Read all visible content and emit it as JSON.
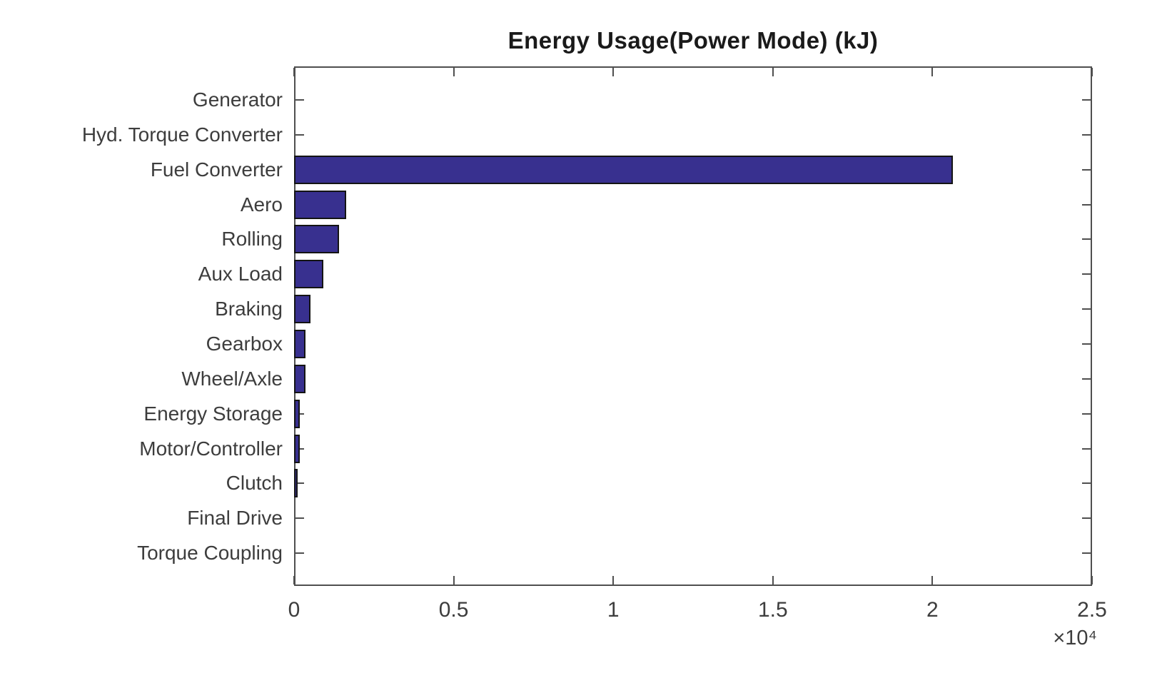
{
  "figure": {
    "background_color": "#ffffff"
  },
  "chart_data": {
    "type": "bar",
    "orientation": "horizontal",
    "title": "Energy Usage(Power Mode) (kJ)",
    "categories": [
      "Generator",
      "Hyd. Torque Converter",
      "Fuel Converter",
      "Aero",
      "Rolling",
      "Aux Load",
      "Braking",
      "Gearbox",
      "Wheel/Axle",
      "Energy Storage",
      "Motor/Controller",
      "Clutch",
      "Final Drive",
      "Torque Coupling"
    ],
    "values": [
      0,
      0,
      20650,
      1630,
      1410,
      910,
      510,
      350,
      350,
      180,
      180,
      100,
      0,
      0
    ],
    "unit": "kJ",
    "xlim": [
      0,
      25000
    ],
    "x_ticks": [
      0,
      5000,
      10000,
      15000,
      20000,
      25000
    ],
    "x_tick_labels": [
      "0",
      "0.5",
      "1",
      "1.5",
      "2",
      "2.5"
    ],
    "x_multiplier_label": "×10⁴",
    "grid": false,
    "legend_position": "none",
    "colors": {
      "bar_fill": "#38308F",
      "bar_border": "#141414",
      "axis": "#4f4f4f",
      "tick_text": "#3d3d3d",
      "title_text": "#1a1a1a"
    }
  }
}
